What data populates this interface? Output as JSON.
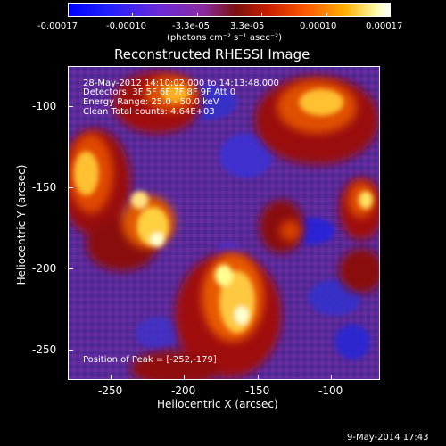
{
  "colorbar": {
    "tick_labels": [
      "-0.00017",
      "-0.00010",
      "-3.3e-05",
      "3.3e-05",
      "0.00010",
      "0.00017"
    ],
    "units": "(photons cm⁻² s⁻¹ asec⁻²)",
    "colors": [
      "#0000ff",
      "#6a2ad8",
      "#8b2a9e",
      "#c81e00",
      "#ff5a00",
      "#ffb000",
      "#ffffff"
    ]
  },
  "title": "Reconstructed RHESSI Image",
  "info": {
    "line1": "28-May-2012 14:10:02.000 to 14:13:48.000",
    "line2": "Detectors: 3F 5F 6F 7F 8F 9F  Att 0",
    "line3": "Energy Range: 25.0 - 50.0 keV",
    "line4": "Clean     Total counts: 4.64E+03",
    "peak": "Position of Peak = [-252,-179]"
  },
  "x_axis": {
    "label": "Heliocentric X (arcsec)",
    "ticks": [
      "-250",
      "-200",
      "-150",
      "-100"
    ],
    "range": [
      -275,
      -80
    ]
  },
  "y_axis": {
    "label": "Heliocentric Y (arcsec)",
    "ticks": [
      "-100",
      "-150",
      "-200",
      "-250"
    ],
    "range": [
      -270,
      -75
    ]
  },
  "footer": {
    "timestamp": "9-May-2014 17:43"
  }
}
